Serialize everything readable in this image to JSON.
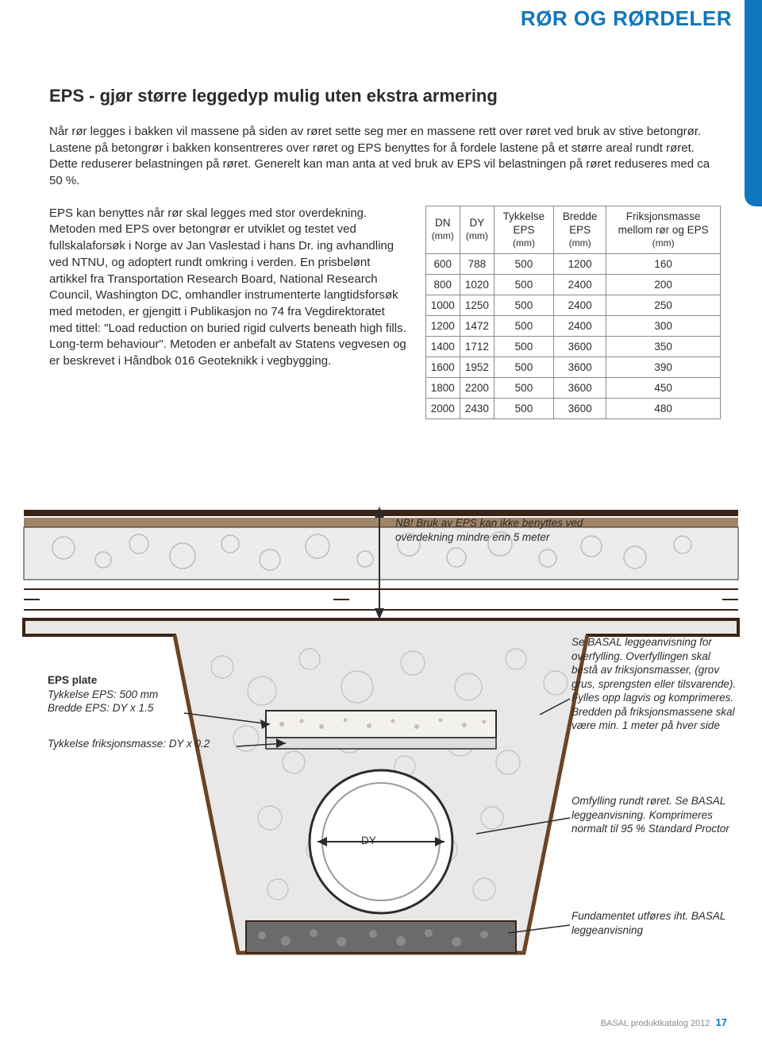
{
  "header": {
    "category": "RØR OG RØRDELER"
  },
  "colors": {
    "brand_blue": "#1076bc",
    "text": "#2b2b2b",
    "table_border": "#8a8a8a",
    "diagram_stroke": "#3a2415",
    "diagram_fill_light": "#e5e5e5",
    "diagram_fill_gravel": "#d8d8d8",
    "diagram_eps_fill": "#f0ede8",
    "footer_grey": "#8a8a8a"
  },
  "section": {
    "title": "EPS - gjør større leggedyp mulig uten ekstra armering",
    "intro": "Når rør legges i bakken vil massene på siden av røret sette seg mer en massene rett over røret ved bruk av stive betongrør. Lastene på betongrør i bakken konsentreres over røret og EPS benyttes for å fordele lastene på et større areal rundt røret. Dette reduserer belastningen på røret. Generelt kan man anta at ved bruk av EPS vil belastningen på røret reduseres med ca 50 %.",
    "body": "EPS kan benyttes når rør skal legges med stor overdekning. Metoden med EPS over betongrør er utviklet og testet ved fullskalaforsøk i Norge av Jan Vaslestad i hans Dr. ing avhandling ved NTNU, og adoptert rundt omkring i verden. En prisbelønt artikkel fra Transportation Research Board, National Research Council, Washington DC, omhandler instrumenterte langtidsforsøk med metoden, er gjengitt i Publikasjon no 74 fra Vegdirektoratet med tittel: \"Load reduction on buried rigid culverts beneath high fills. Long-term behaviour\". Metoden er anbefalt av Statens vegvesen og er beskrevet i Håndbok 016 Geoteknikk i vegbygging."
  },
  "table": {
    "columns": [
      {
        "label": "DN",
        "unit": "(mm)"
      },
      {
        "label": "DY",
        "unit": "(mm)"
      },
      {
        "label": "Tykkelse EPS",
        "unit": "(mm)"
      },
      {
        "label": "Bredde EPS",
        "unit": "(mm)"
      },
      {
        "label": "Friksjonsmasse mellom rør og EPS",
        "unit": "(mm)"
      }
    ],
    "rows": [
      [
        "600",
        "788",
        "500",
        "1200",
        "160"
      ],
      [
        "800",
        "1020",
        "500",
        "2400",
        "200"
      ],
      [
        "1000",
        "1250",
        "500",
        "2400",
        "250"
      ],
      [
        "1200",
        "1472",
        "500",
        "2400",
        "300"
      ],
      [
        "1400",
        "1712",
        "500",
        "3600",
        "350"
      ],
      [
        "1600",
        "1952",
        "500",
        "3600",
        "390"
      ],
      [
        "1800",
        "2200",
        "500",
        "3600",
        "450"
      ],
      [
        "2000",
        "2430",
        "500",
        "3600",
        "480"
      ]
    ]
  },
  "diagram": {
    "note_top": "NB! Bruk av EPS kan ikke benyttes ved overdekning mindre enn 5 meter",
    "eps_label_title": "EPS plate",
    "eps_label_line1": "Tykkelse EPS:  500 mm",
    "eps_label_line2": "Bredde EPS:    DY x 1.5",
    "eps_label_line3": "Tykkelse friksjonsmasse:  DY x 0.2",
    "annot_overfyll": "Se BASAL leggeanvisning for overfylling. Overfyllingen skal bestå av friksjonsmasser, (grov grus, sprengsten eller tilsvarende). Fylles opp lagvis og komprimeres. Bredden på friksjonsmassene skal være min. 1 meter på hver side",
    "annot_omfyll": "Omfylling rundt røret. Se BASAL leggeanvisning. Komprimeres normalt til 95 % Standard Proctor",
    "annot_fundament": "Fundamentet utføres iht. BASAL leggeanvisning",
    "dy_label": "DY"
  },
  "footer": {
    "text": "BASAL produktkatalog 2012",
    "page": "17"
  }
}
